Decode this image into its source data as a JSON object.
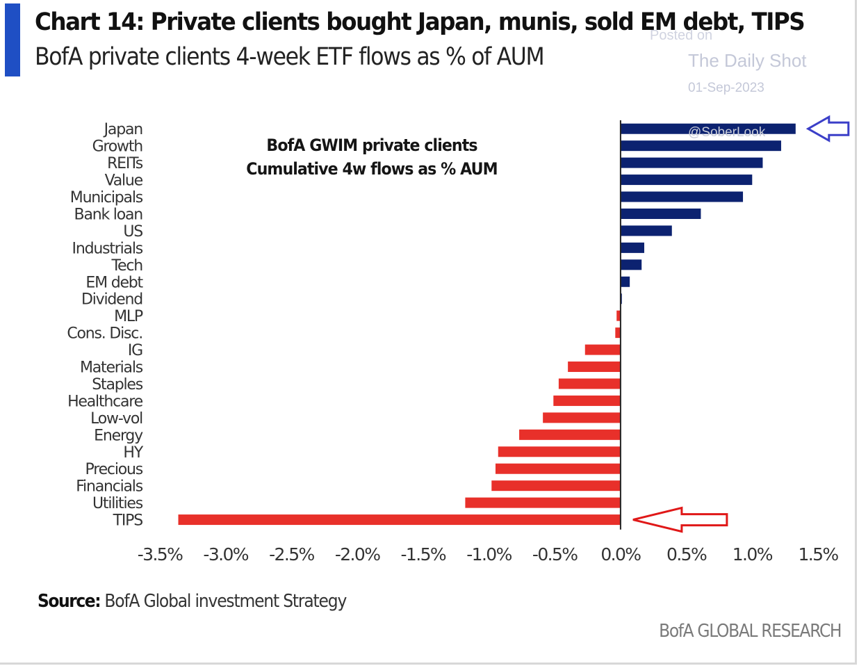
{
  "header": {
    "title": "Chart 14: Private clients bought Japan, munis, sold EM debt, TIPS",
    "subtitle": "BofA private clients 4-week ETF flows as % of AUM",
    "accent_color": "#1f4fc4"
  },
  "watermark": {
    "posted": "Posted on",
    "site": "The Daily Shot",
    "date": "01-Sep-2023",
    "handle": "@SoberLook"
  },
  "footer": {
    "source_label": "Source:",
    "source_text": "BofA Global investment Strategy",
    "brand": "BofA GLOBAL RESEARCH"
  },
  "chart_data": {
    "type": "bar",
    "orientation": "horizontal",
    "title": "Chart 14: Private clients bought Japan, munis, sold EM debt, TIPS",
    "subtitle": "BofA private clients 4-week ETF flows as % of AUM",
    "annotation": [
      "BofA GWIM private clients",
      "Cumulative 4w flows as % AUM"
    ],
    "xlabel": "",
    "ylabel": "",
    "unit": "%",
    "xlim": [
      -3.5,
      1.5
    ],
    "x_ticks": [
      -3.5,
      -3.0,
      -2.5,
      -2.0,
      -1.5,
      -1.0,
      -0.5,
      0.0,
      0.5,
      1.0,
      1.5
    ],
    "x_tick_labels": [
      "-3.5%",
      "-3.0%",
      "-2.5%",
      "-2.0%",
      "-1.5%",
      "-1.0%",
      "-0.5%",
      "0.0%",
      "0.5%",
      "1.0%",
      "1.5%"
    ],
    "grid": false,
    "legend": "none",
    "positive_color": "#0c2270",
    "negative_color": "#e8302a",
    "categories": [
      "Japan",
      "Growth",
      "REITs",
      "Value",
      "Municipals",
      "Bank loan",
      "US",
      "Industrials",
      "Tech",
      "EM debt",
      "Dividend",
      "MLP",
      "Cons. Disc.",
      "IG",
      "Materials",
      "Staples",
      "Healthcare",
      "Low-vol",
      "Energy",
      "HY",
      "Precious",
      "Financials",
      "Utilities",
      "TIPS"
    ],
    "values": [
      1.33,
      1.22,
      1.08,
      1.0,
      0.93,
      0.61,
      0.39,
      0.18,
      0.16,
      0.07,
      0.01,
      -0.03,
      -0.04,
      -0.27,
      -0.4,
      -0.47,
      -0.51,
      -0.59,
      -0.77,
      -0.93,
      -0.95,
      -0.98,
      -1.18,
      -3.36
    ],
    "highlighted": [
      {
        "category": "Japan",
        "arrow_color": "#3b3fc8"
      },
      {
        "category": "TIPS",
        "arrow_color": "#e01818"
      }
    ]
  }
}
